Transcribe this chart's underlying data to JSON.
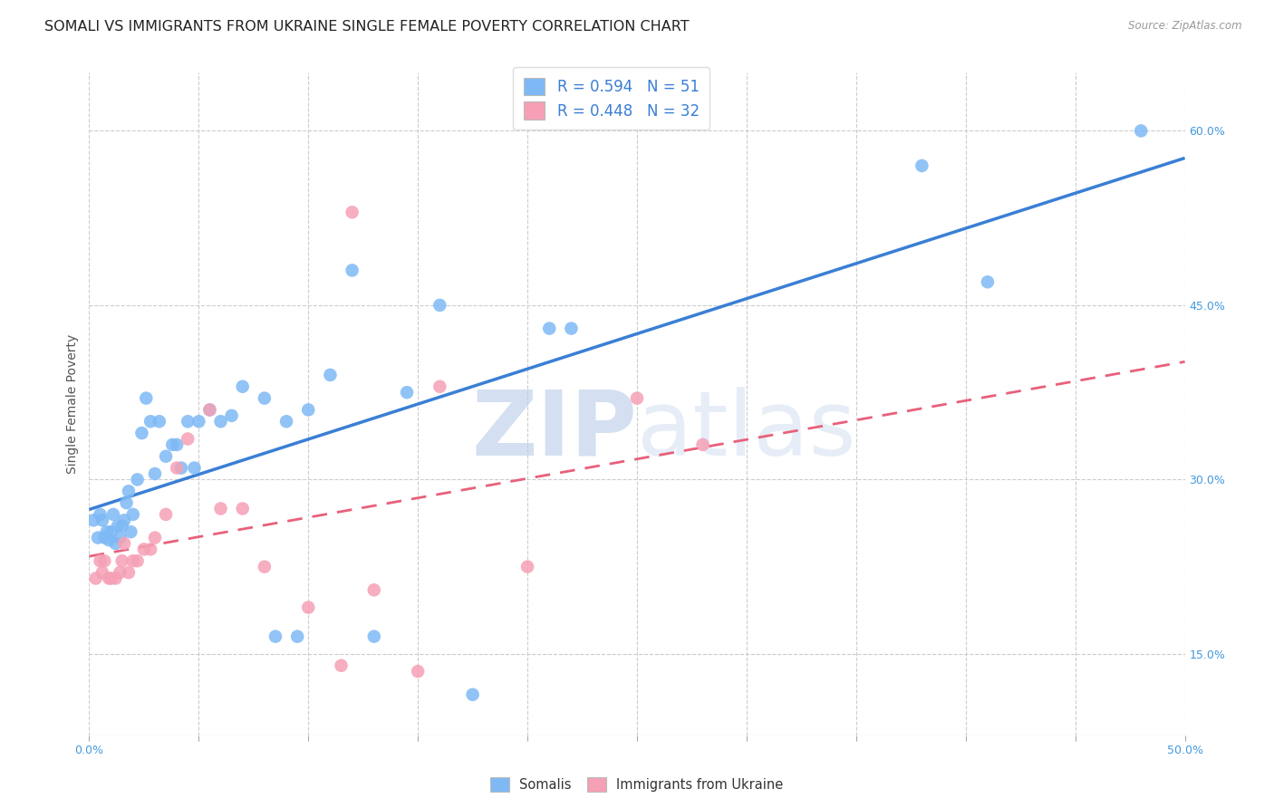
{
  "title": "SOMALI VS IMMIGRANTS FROM UKRAINE SINGLE FEMALE POVERTY CORRELATION CHART",
  "source": "Source: ZipAtlas.com",
  "ylabel": "Single Female Poverty",
  "xlim": [
    0.0,
    0.5
  ],
  "ylim": [
    0.08,
    0.65
  ],
  "y_ticks_right": [
    0.15,
    0.3,
    0.45,
    0.6
  ],
  "y_tick_labels_right": [
    "15.0%",
    "30.0%",
    "45.0%",
    "60.0%"
  ],
  "somali_R": 0.594,
  "somali_N": 51,
  "ukraine_R": 0.448,
  "ukraine_N": 32,
  "somali_color": "#7EB9F5",
  "ukraine_color": "#F5A0B5",
  "somali_line_color": "#3A7FD5",
  "ukraine_line_color": "#E8607A",
  "watermark_zip": "ZIP",
  "watermark_atlas": "atlas",
  "grid_color": "#CCCCCC",
  "background_color": "#FFFFFF",
  "title_fontsize": 11.5,
  "axis_label_fontsize": 10,
  "tick_fontsize": 9,
  "legend_fontsize": 12,
  "somali_x": [
    0.002,
    0.004,
    0.005,
    0.006,
    0.007,
    0.008,
    0.009,
    0.01,
    0.011,
    0.012,
    0.013,
    0.014,
    0.015,
    0.016,
    0.017,
    0.018,
    0.019,
    0.02,
    0.022,
    0.024,
    0.026,
    0.028,
    0.03,
    0.032,
    0.035,
    0.038,
    0.04,
    0.042,
    0.045,
    0.048,
    0.05,
    0.055,
    0.06,
    0.065,
    0.07,
    0.08,
    0.085,
    0.09,
    0.095,
    0.1,
    0.11,
    0.12,
    0.13,
    0.145,
    0.16,
    0.175,
    0.21,
    0.22,
    0.38,
    0.41,
    0.48
  ],
  "somali_y": [
    0.265,
    0.25,
    0.27,
    0.265,
    0.25,
    0.255,
    0.248,
    0.255,
    0.27,
    0.245,
    0.26,
    0.25,
    0.26,
    0.265,
    0.28,
    0.29,
    0.255,
    0.27,
    0.3,
    0.34,
    0.37,
    0.35,
    0.305,
    0.35,
    0.32,
    0.33,
    0.33,
    0.31,
    0.35,
    0.31,
    0.35,
    0.36,
    0.35,
    0.355,
    0.38,
    0.37,
    0.165,
    0.35,
    0.165,
    0.36,
    0.39,
    0.48,
    0.165,
    0.375,
    0.45,
    0.115,
    0.43,
    0.43,
    0.57,
    0.47,
    0.6
  ],
  "ukraine_x": [
    0.003,
    0.005,
    0.006,
    0.007,
    0.009,
    0.01,
    0.012,
    0.014,
    0.015,
    0.016,
    0.018,
    0.02,
    0.022,
    0.025,
    0.028,
    0.03,
    0.035,
    0.04,
    0.045,
    0.055,
    0.06,
    0.07,
    0.08,
    0.1,
    0.115,
    0.12,
    0.13,
    0.15,
    0.16,
    0.2,
    0.25,
    0.28
  ],
  "ukraine_y": [
    0.215,
    0.23,
    0.22,
    0.23,
    0.215,
    0.215,
    0.215,
    0.22,
    0.23,
    0.245,
    0.22,
    0.23,
    0.23,
    0.24,
    0.24,
    0.25,
    0.27,
    0.31,
    0.335,
    0.36,
    0.275,
    0.275,
    0.225,
    0.19,
    0.14,
    0.53,
    0.205,
    0.135,
    0.38,
    0.225,
    0.37,
    0.33
  ]
}
